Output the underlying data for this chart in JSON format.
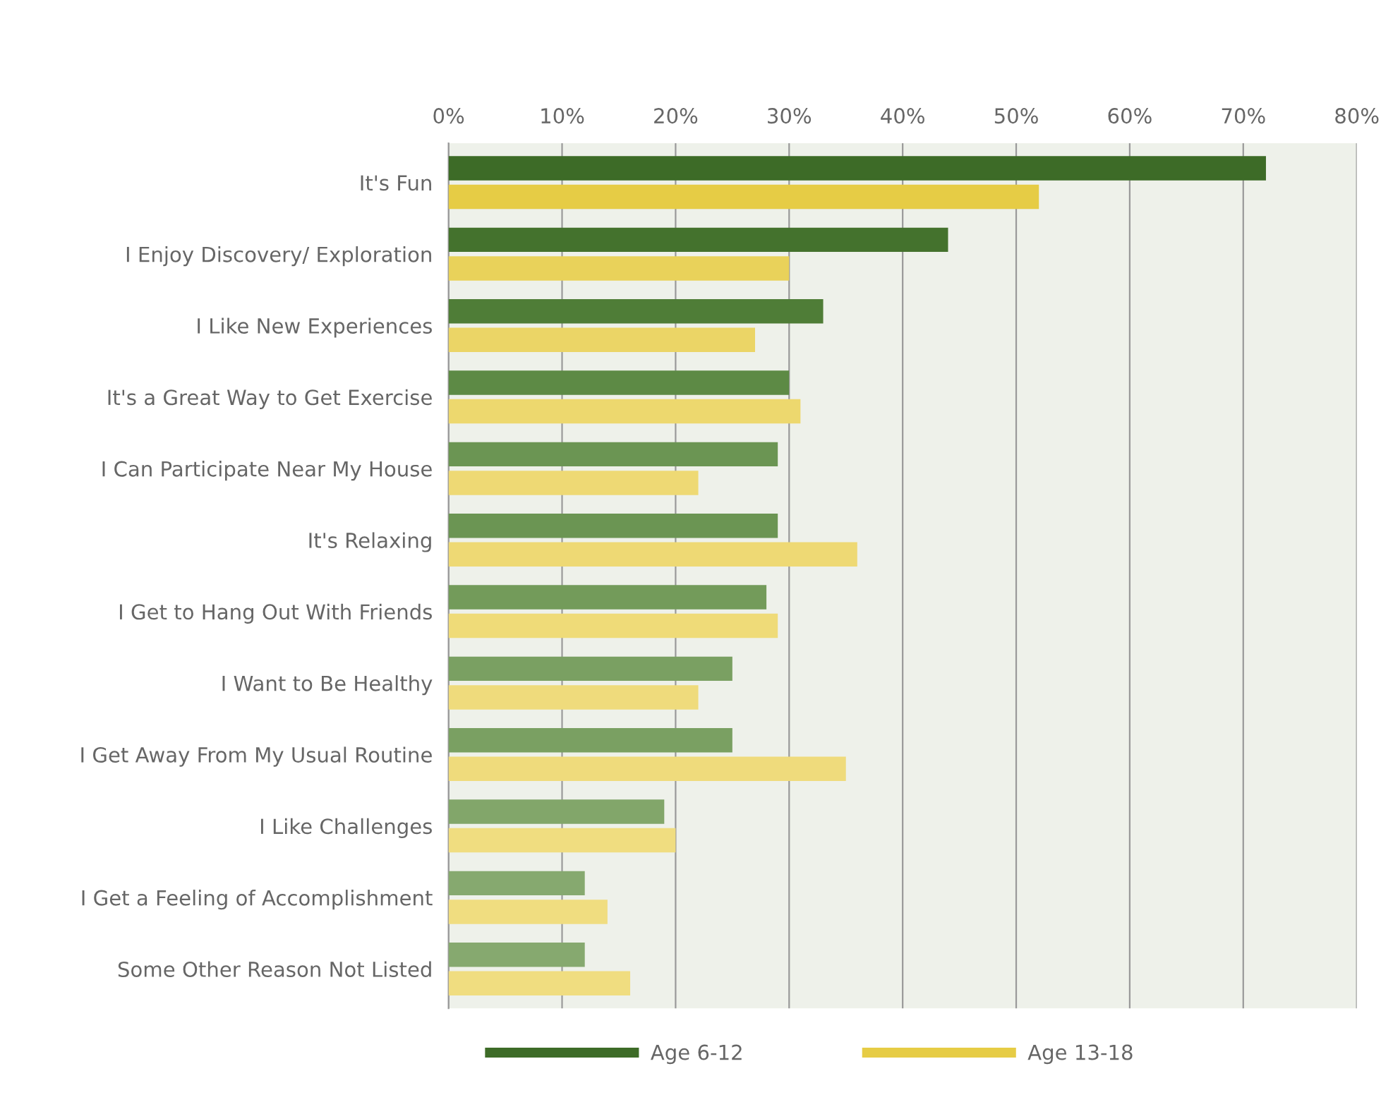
{
  "chart_data": {
    "type": "bar",
    "orientation": "horizontal",
    "categories": [
      "It's Fun",
      "I Enjoy Discovery/ Exploration",
      "I Like New Experiences",
      "It's a Great Way to Get Exercise",
      "I Can Participate Near My House",
      "It's Relaxing",
      "I Get to Hang Out With Friends",
      "I Want to Be Healthy",
      "I Get Away From My Usual Routine",
      "I Like Challenges",
      "I Get a Feeling of Accomplishment",
      "Some Other Reason Not Listed"
    ],
    "series": [
      {
        "name": "Age 6-12",
        "color": "#3d6b27",
        "colors": [
          "#3d6b27",
          "#44722d",
          "#4f7d37",
          "#5d8a45",
          "#6b9553",
          "#6b9553",
          "#739b5a",
          "#7aa062",
          "#7aa062",
          "#82a66a",
          "#86a96f",
          "#86a96f"
        ],
        "values": [
          72,
          44,
          33,
          30,
          29,
          29,
          28,
          25,
          25,
          19,
          12,
          12
        ]
      },
      {
        "name": "Age 13-18",
        "color": "#e6cc45",
        "colors": [
          "#e6cc45",
          "#e9d25a",
          "#ebd566",
          "#edd86e",
          "#eed974",
          "#eed974",
          "#efdb78",
          "#efdb7c",
          "#efdb7c",
          "#f0dd80",
          "#f0dd80",
          "#f0dd80"
        ],
        "values": [
          52,
          30,
          27,
          31,
          22,
          36,
          29,
          22,
          35,
          20,
          14,
          16
        ]
      }
    ],
    "xlim": [
      0,
      80
    ],
    "xticks": [
      {
        "value": 0,
        "label": "0%"
      },
      {
        "value": 10,
        "label": "10%"
      },
      {
        "value": 20,
        "label": "20%"
      },
      {
        "value": 30,
        "label": "30%"
      },
      {
        "value": 40,
        "label": "40%"
      },
      {
        "value": 50,
        "label": "50%"
      },
      {
        "value": 60,
        "label": "60%"
      },
      {
        "value": 70,
        "label": "70%"
      },
      {
        "value": 80,
        "label": "80%"
      }
    ],
    "grid": "x",
    "legend": "bottom"
  }
}
